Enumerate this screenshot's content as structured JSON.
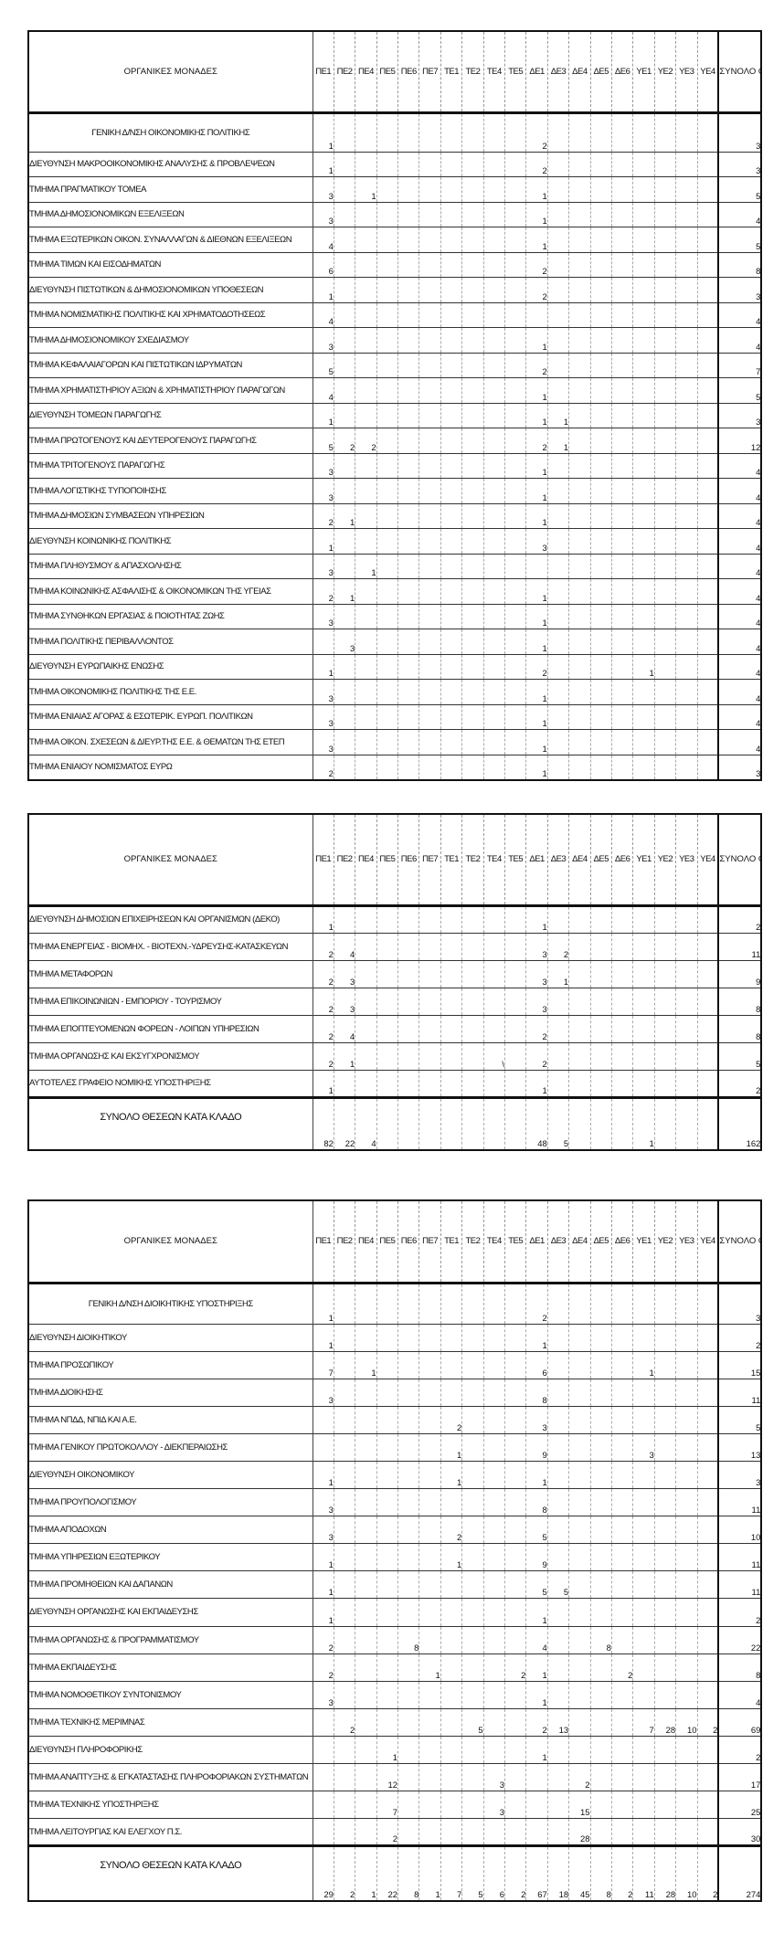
{
  "columns": [
    "ΠΕ1",
    "ΠΕ2",
    "ΠΕ4",
    "ΠΕ5",
    "ΠΕ6",
    "ΠΕ7",
    "ΤΕ1",
    "ΤΕ2",
    "ΤΕ4",
    "ΤΕ5",
    "ΔΕ1",
    "ΔΕ3",
    "ΔΕ4",
    "ΔΕ5",
    "ΔΕ6",
    "ΥΕ1",
    "ΥΕ2",
    "ΥΕ3",
    "ΥΕ4"
  ],
  "header": {
    "name": "ΟΡΓΑΝΙΚΕΣ ΜΟΝΑΔΕΣ",
    "total": "ΣΥΝΟΛΟ ΘΕΣΕΩΝ ΚΑΤΑ ΜΟΝΑΔΑ"
  },
  "sum_label": "ΣΥΝΟΛΟ ΘΕΣΕΩΝ ΚΑΤΑ ΚΛΑΔΟ",
  "tables": [
    {
      "rows": [
        {
          "name": "ΓΕΝΙΚΗ Δ/ΝΣΗ ΟΙΚΟΝΟΜΙΚΗΣ ΠΟΛΙΤΙΚΗΣ",
          "centered": true,
          "values": {
            "ΠΕ1": "1",
            "ΔΕ1": "2"
          },
          "total": "3"
        },
        {
          "name": "ΔΙΕΥΘΥΝΣΗ ΜΑΚΡΟΟΙΚΟΝΟΜΙΚΗΣ ΑΝΑΛΥΣΗΣ & ΠΡΟΒΛΕΨΕΩΝ",
          "values": {
            "ΠΕ1": "1",
            "ΔΕ1": "2"
          },
          "total": "3"
        },
        {
          "name": "ΤΜΗΜΑ ΠΡΑΓΜΑΤΙΚΟΥ ΤΟΜΕΑ",
          "values": {
            "ΠΕ1": "3",
            "ΠΕ4": "1",
            "ΔΕ1": "1"
          },
          "total": "5"
        },
        {
          "name": "ΤΜΗΜΑ ΔΗΜΟΣΙΟΝΟΜΙΚΩΝ ΕΞΕΛΙΞΕΩΝ",
          "values": {
            "ΠΕ1": "3",
            "ΔΕ1": "1"
          },
          "total": "4"
        },
        {
          "name": "ΤΜΗΜΑ ΕΞΩΤΕΡΙΚΩΝ ΟΙΚΟΝ. ΣΥΝΑΛΛΑΓΩΝ & ΔΙΕΘΝΩΝ ΕΞΕΛΙΞΕΩΝ",
          "values": {
            "ΠΕ1": "4",
            "ΔΕ1": "1"
          },
          "total": "5"
        },
        {
          "name": "ΤΜΗΜΑ ΤΙΜΩΝ ΚΑΙ ΕΙΣΟΔΗΜΑΤΩΝ",
          "values": {
            "ΠΕ1": "6",
            "ΔΕ1": "2"
          },
          "total": "8"
        },
        {
          "name": "ΔΙΕΥΘΥΝΣΗ ΠΙΣΤΩΤΙΚΩΝ & ΔΗΜΟΣΙΟΝΟΜΙΚΩΝ ΥΠΟΘΕΣΕΩΝ",
          "values": {
            "ΠΕ1": "1",
            "ΔΕ1": "2"
          },
          "total": "3"
        },
        {
          "name": "ΤΜΗΜΑ ΝΟΜΙΣΜΑΤΙΚΗΣ ΠΟΛΙΤΙΚΗΣ ΚΑΙ ΧΡΗΜΑΤΟΔΟΤΗΣΕΩΣ",
          "values": {
            "ΠΕ1": "4"
          },
          "total": "4"
        },
        {
          "name": "ΤΜΗΜΑ ΔΗΜΟΣΙΟΝΟΜΙΚΟΥ ΣΧΕΔΙΑΣΜΟΥ",
          "values": {
            "ΠΕ1": "3",
            "ΔΕ1": "1"
          },
          "total": "4"
        },
        {
          "name": "ΤΜΗΜΑ ΚΕΦΑΛΑΙΑΓΟΡΩΝ ΚΑΙ ΠΙΣΤΩΤΙΚΩΝ ΙΔΡΥΜΑΤΩΝ",
          "values": {
            "ΠΕ1": "5",
            "ΔΕ1": "2"
          },
          "total": "7"
        },
        {
          "name": "ΤΜΗΜΑ ΧΡΗΜΑΤΙΣΤΗΡΙΟΥ ΑΞΙΩΝ & ΧΡΗΜΑΤΙΣΤΗΡΙΟΥ ΠΑΡΑΓΩΓΩΝ",
          "values": {
            "ΠΕ1": "4",
            "ΔΕ1": "1"
          },
          "total": "5"
        },
        {
          "name": "ΔΙΕΥΘΥΝΣΗ ΤΟΜΕΩΝ ΠΑΡΑΓΩΓΗΣ",
          "values": {
            "ΠΕ1": "1",
            "ΔΕ1": "1",
            "ΔΕ3": "1"
          },
          "total": "3"
        },
        {
          "name": "ΤΜΗΜΑ  ΠΡΩΤΟΓΕΝΟΥΣ ΚΑΙ ΔΕΥΤΕΡΟΓΕΝΟΥΣ ΠΑΡΑΓΩΓΗΣ",
          "values": {
            "ΠΕ1": "5",
            "ΠΕ2": "2",
            "ΠΕ4": "2",
            "ΔΕ1": "2",
            "ΔΕ3": "1"
          },
          "total": "12"
        },
        {
          "name": "ΤΜΗΜΑ  ΤΡΙΤΟΓΕΝΟΥΣ ΠΑΡΑΓΩΓΗΣ",
          "values": {
            "ΠΕ1": "3",
            "ΔΕ1": "1"
          },
          "total": "4"
        },
        {
          "name": "ΤΜΗΜΑ  ΛΟΓΙΣΤΙΚΗΣ ΤΥΠΟΠΟΙΗΣΗΣ",
          "values": {
            "ΠΕ1": "3",
            "ΔΕ1": "1"
          },
          "total": "4"
        },
        {
          "name": "ΤΜΗΜΑ  ΔΗΜΟΣΙΩΝ ΣΥΜΒΑΣΕΩΝ ΥΠΗΡΕΣΙΩΝ",
          "values": {
            "ΠΕ1": "2",
            "ΠΕ2": "1",
            "ΔΕ1": "1"
          },
          "total": "4"
        },
        {
          "name": "ΔΙΕΥΘΥΝΣΗ ΚΟΙΝΩΝΙΚΗΣ ΠΟΛΙΤΙΚΗΣ",
          "values": {
            "ΠΕ1": "1",
            "ΔΕ1": "3"
          },
          "total": "4"
        },
        {
          "name": "ΤΜΗΜΑ ΠΛΗΘΥΣΜΟΥ & ΑΠΑΣΧΟΛΗΣΗΣ",
          "values": {
            "ΠΕ1": "3",
            "ΠΕ4": "1"
          },
          "total": "4"
        },
        {
          "name": "ΤΜΗΜΑ ΚΟΙΝΩΝΙΚΗΣ ΑΣΦΑΛΙΣΗΣ & ΟΙΚΟΝΟΜΙΚΩΝ ΤΗΣ ΥΓΕΙΑΣ",
          "values": {
            "ΠΕ1": "2",
            "ΠΕ2": "1",
            "ΔΕ1": "1"
          },
          "total": "4"
        },
        {
          "name": "ΤΜΗΜΑ ΣΥΝΘΗΚΩΝ ΕΡΓΑΣΙΑΣ & ΠΟΙΟΤΗΤΑΣ ΖΩΗΣ",
          "values": {
            "ΠΕ1": "3",
            "ΔΕ1": "1"
          },
          "total": "4"
        },
        {
          "name": "ΤΜΗΜΑ ΠΟΛΙΤΙΚΗΣ ΠΕΡΙΒΑΛΛΟΝΤΟΣ",
          "values": {
            "ΠΕ2": "3",
            "ΔΕ1": "1"
          },
          "total": "4"
        },
        {
          "name": "ΔΙΕΥΘΥΝΣΗ ΕΥΡΩΠΑΙΚΗΣ ΕΝΩΣΗΣ",
          "values": {
            "ΠΕ1": "1",
            "ΔΕ1": "2",
            "ΥΕ1": "1"
          },
          "total": "4"
        },
        {
          "name": "ΤΜΗΜΑ ΟΙΚΟΝΟΜΙΚΗΣ ΠΟΛΙΤΙΚΗΣ ΤΗΣ Ε.Ε.",
          "values": {
            "ΠΕ1": "3",
            "ΔΕ1": "1"
          },
          "total": "4"
        },
        {
          "name": "ΤΜΗΜΑ ΕΝΙΑΙΑΣ ΑΓΟΡΑΣ & ΕΣΩΤΕΡΙΚ. ΕΥΡΩΠ. ΠΟΛΙΤΙΚΩΝ",
          "values": {
            "ΠΕ1": "3",
            "ΔΕ1": "1"
          },
          "total": "4"
        },
        {
          "name": "ΤΜΗΜΑ  ΟΙΚΟΝ. ΣΧΕΣΕΩΝ & ΔΙΕΥΡ.ΤΗΣ Ε.Ε. & ΘΕΜΑΤΩΝ ΤΗΣ ΕΤΕΠ",
          "values": {
            "ΠΕ1": "3",
            "ΔΕ1": "1"
          },
          "total": "4"
        },
        {
          "name": "ΤΜΗΜΑ ΕΝΙΑΙΟΥ ΝΟΜΙΣΜΑΤΟΣ ΕΥΡΩ",
          "values": {
            "ΠΕ1": "2",
            "ΔΕ1": "1"
          },
          "total": "3"
        }
      ]
    },
    {
      "rows": [
        {
          "name": "ΔΙΕΥΘΥΝΣΗ ΔΗΜΟΣΙΩΝ ΕΠΙΧΕΙΡΗΣΕΩΝ ΚΑΙ ΟΡΓΑΝΙΣΜΩΝ (ΔΕΚΟ)",
          "values": {
            "ΠΕ1": "1",
            "ΔΕ1": "1"
          },
          "total": "2"
        },
        {
          "name": "ΤΜΗΜΑ ΕΝΕΡΓΕΙΑΣ - ΒΙΟΜΗΧ. - ΒΙΟΤΕΧΝ.-ΥΔΡΕΥΣΗΣ-ΚΑΤΑΣΚΕΥΩΝ",
          "values": {
            "ΠΕ1": "2",
            "ΠΕ2": "4",
            "ΔΕ1": "3",
            "ΔΕ3": "2"
          },
          "total": "11"
        },
        {
          "name": "ΤΜΗΜΑ ΜΕΤΑΦΟΡΩΝ",
          "values": {
            "ΠΕ1": "2",
            "ΠΕ2": "3",
            "ΔΕ1": "3",
            "ΔΕ3": "1"
          },
          "total": "9"
        },
        {
          "name": "ΤΜΗΜΑ ΕΠΙΚΟΙΝΩΝΙΩΝ - ΕΜΠΟΡΙΟΥ - ΤΟΥΡΙΣΜΟΥ",
          "values": {
            "ΠΕ1": "2",
            "ΠΕ2": "3",
            "ΔΕ1": "3"
          },
          "total": "8"
        },
        {
          "name": "ΤΜΗΜΑ ΕΠΟΠΤΕΥΟΜΕΝΩΝ ΦΟΡΕΩΝ - ΛΟΙΠΩΝ ΥΠΗΡΕΣΙΩΝ",
          "values": {
            "ΠΕ1": "2",
            "ΠΕ2": "4",
            "ΔΕ1": "2"
          },
          "total": "8"
        },
        {
          "name": "ΤΜΗΜΑ ΟΡΓΑΝΩΣΗΣ ΚΑΙ ΕΚΣΥΓΧΡΟΝΙΣΜΟΥ",
          "values": {
            "ΠΕ1": "2",
            "ΠΕ2": "1",
            "ΤΕ4": "\\",
            "ΔΕ1": "2"
          },
          "total": "5"
        },
        {
          "name": "ΑΥΤΟΤΕΛΕΣ ΓΡΑΦΕΙΟ ΝΟΜΙΚΗΣ ΥΠΟΣΤΗΡΙΞΗΣ",
          "values": {
            "ΠΕ1": "1",
            "ΔΕ1": "1"
          },
          "total": "2"
        }
      ],
      "sum": {
        "values": {
          "ΠΕ1": "82",
          "ΠΕ2": "22",
          "ΠΕ4": "4",
          "ΔΕ1": "48",
          "ΔΕ3": "5",
          "ΥΕ1": "1"
        },
        "total": "162"
      }
    },
    {
      "rows": [
        {
          "name": "ΓΕΝΙΚΗ Δ/ΝΣΗ ΔΙΟΙΚΗΤΙΚΗΣ ΥΠΟΣΤΗΡΙΞΗΣ",
          "centered": true,
          "values": {
            "ΠΕ1": "1",
            "ΔΕ1": "2"
          },
          "total": "3"
        },
        {
          "name": "ΔΙΕΥΘΥΝΣΗ ΔΙΟΙΚΗΤΙΚΟΥ",
          "values": {
            "ΠΕ1": "1",
            "ΔΕ1": "1"
          },
          "total": "2"
        },
        {
          "name": "ΤΜΗΜΑ ΠΡΟΣΩΠΙΚΟΥ",
          "values": {
            "ΠΕ1": "7",
            "ΠΕ4": "1",
            "ΔΕ1": "6",
            "ΥΕ1": "1"
          },
          "total": "15"
        },
        {
          "name": "ΤΜΗΜΑ ΔΙΟΙΚΗΣΗΣ",
          "values": {
            "ΠΕ1": "3",
            "ΔΕ1": "8"
          },
          "total": "11"
        },
        {
          "name": "ΤΜΗΜΑ ΝΠΔΔ, ΝΠΙΔ ΚΑΙ Α.Ε.",
          "values": {
            "ΤΕ1": "2",
            "ΔΕ1": "3"
          },
          "total": "5"
        },
        {
          "name": "ΤΜΗΜΑ ΓΕΝΙΚΟΥ ΠΡΩΤΟΚΟΛΛΟΥ - ΔΙΕΚΠΕΡΑΙΩΣΗΣ",
          "values": {
            "ΤΕ1": "1",
            "ΔΕ1": "9",
            "ΥΕ1": "3"
          },
          "total": "13"
        },
        {
          "name": "ΔΙΕΥΘΥΝΣΗ ΟΙΚΟΝΟΜΙΚΟΥ",
          "values": {
            "ΠΕ1": "1",
            "ΤΕ1": "1",
            "ΔΕ1": "1"
          },
          "total": "3"
        },
        {
          "name": "ΤΜΗΜΑ ΠΡΟΥΠΟΛΟΓΙΣΜΟΥ",
          "values": {
            "ΠΕ1": "3",
            "ΔΕ1": "8"
          },
          "total": "11"
        },
        {
          "name": "ΤΜΗΜΑ ΑΠΟΔΟΧΩΝ",
          "values": {
            "ΠΕ1": "3",
            "ΤΕ1": "2",
            "ΔΕ1": "5"
          },
          "total": "10"
        },
        {
          "name": "ΤΜΗΜΑ ΥΠΗΡΕΣΙΩΝ ΕΞΩΤΕΡΙΚΟΥ",
          "values": {
            "ΠΕ1": "1",
            "ΤΕ1": "1",
            "ΔΕ1": "9"
          },
          "total": "11"
        },
        {
          "name": "ΤΜΗΜΑ ΠΡΟΜΗΘΕΙΩΝ ΚΑΙ ΔΑΠΑΝΩΝ",
          "values": {
            "ΠΕ1": "1",
            "ΔΕ1": "5",
            "ΔΕ3": "5"
          },
          "total": "11"
        },
        {
          "name": "ΔΙΕΥΘΥΝΣΗ ΟΡΓΑΝΩΣΗΣ ΚΑΙ ΕΚΠΑΙΔΕΥΣΗΣ",
          "values": {
            "ΠΕ1": "1",
            "ΔΕ1": "1"
          },
          "total": "2"
        },
        {
          "name": "ΤΜΗΜΑ ΟΡΓΑΝΩΣΗΣ & ΠΡΟΓΡΑΜΜΑΤΙΣΜΟΥ",
          "values": {
            "ΠΕ1": "2",
            "ΠΕ6": "8",
            "ΔΕ1": "4",
            "ΔΕ5": "8"
          },
          "total": "22"
        },
        {
          "name": "ΤΜΗΜΑ ΕΚΠΑΙΔΕΥΣΗΣ",
          "values": {
            "ΠΕ1": "2",
            "ΠΕ7": "1",
            "ΤΕ5": "2",
            "ΔΕ1": "1",
            "ΔΕ6": "2"
          },
          "total": "8"
        },
        {
          "name": "ΤΜΗΜΑ ΝΟΜΟΘΕΤΙΚΟΥ ΣΥΝΤΟΝΙΣΜΟΥ",
          "values": {
            "ΠΕ1": "3",
            "ΔΕ1": "1"
          },
          "total": "4"
        },
        {
          "name": "ΤΜΗΜΑ ΤΕΧΝΙΚΗΣ ΜΕΡΙΜΝΑΣ",
          "values": {
            "ΠΕ2": "2",
            "ΤΕ2": "5",
            "ΔΕ1": "2",
            "ΔΕ3": "13",
            "ΥΕ1": "7",
            "ΥΕ2": "28",
            "ΥΕ3": "10",
            "ΥΕ4": "2"
          },
          "total": "69"
        },
        {
          "name": "ΔΙΕΥΘΥΝΣΗ ΠΛΗΡΟΦΟΡΙΚΗΣ",
          "values": {
            "ΠΕ5": "1",
            "ΔΕ1": "1"
          },
          "total": "2"
        },
        {
          "name": "ΤΜΗΜΑ ΑΝΑΠΤΥΞΗΣ & ΕΓΚΑΤΑΣΤΑΣΗΣ ΠΛΗΡΟΦΟΡΙΑΚΩΝ ΣΥΣΤΗΜΑΤΩΝ",
          "values": {
            "ΠΕ5": "12",
            "ΤΕ4": "3",
            "ΔΕ4": "2"
          },
          "total": "17"
        },
        {
          "name": "ΤΜΗΜΑ ΤΕΧΝΙΚΗΣ ΥΠΟΣΤΗΡΙΞΗΣ",
          "values": {
            "ΠΕ5": "7",
            "ΤΕ4": "3",
            "ΔΕ4": "15"
          },
          "total": "25"
        },
        {
          "name": "ΤΜΗΜΑ ΛΕΙΤΟΥΡΓΙΑΣ ΚΑΙ ΕΛΕΓΧΟΥ Π.Σ.",
          "values": {
            "ΠΕ5": "2",
            "ΔΕ4": "28"
          },
          "total": "30"
        }
      ],
      "sum": {
        "values": {
          "ΠΕ1": "29",
          "ΠΕ2": "2",
          "ΠΕ4": "1",
          "ΠΕ5": "22",
          "ΠΕ6": "8",
          "ΠΕ7": "1",
          "ΤΕ1": "7",
          "ΤΕ2": "5",
          "ΤΕ4": "6",
          "ΤΕ5": "2",
          "ΔΕ1": "67",
          "ΔΕ3": "18",
          "ΔΕ4": "45",
          "ΔΕ5": "8",
          "ΔΕ6": "2",
          "ΥΕ1": "11",
          "ΥΕ2": "28",
          "ΥΕ3": "10",
          "ΥΕ4": "2"
        },
        "total": "274"
      }
    }
  ]
}
